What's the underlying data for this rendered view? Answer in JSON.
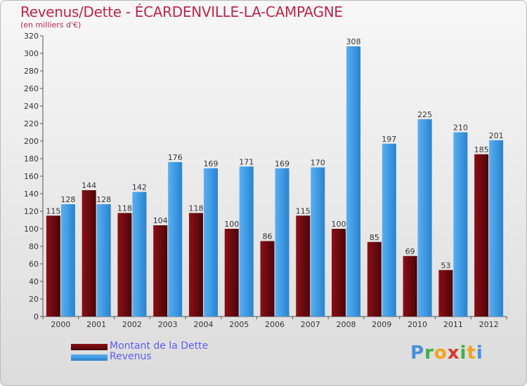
{
  "title": "Revenus/Dette - ÉCARDENVILLE-LA-CAMPAGNE",
  "subtitle": "(en milliers d'€)",
  "colors": {
    "dette": "#6b0a0f",
    "revenus": "#3f9ae3",
    "title": "#b8274b",
    "legend_text": "#5c5cf0"
  },
  "chart_data": {
    "type": "bar",
    "categories": [
      "2000",
      "2001",
      "2002",
      "2003",
      "2004",
      "2005",
      "2006",
      "2007",
      "2008",
      "2009",
      "2010",
      "2011",
      "2012"
    ],
    "series": [
      {
        "name": "Montant de la Dette",
        "values": [
          115,
          144,
          118,
          104,
          118,
          100,
          86,
          115,
          100,
          85,
          69,
          53,
          185
        ]
      },
      {
        "name": "Revenus",
        "values": [
          128,
          128,
          142,
          176,
          169,
          171,
          169,
          170,
          308,
          197,
          225,
          210,
          201
        ]
      }
    ],
    "yticks": [
      0,
      20,
      40,
      60,
      80,
      100,
      120,
      140,
      160,
      180,
      200,
      220,
      240,
      260,
      280,
      300,
      320
    ],
    "ylim": [
      0,
      320
    ],
    "xlabel": "",
    "ylabel": "",
    "grid": false,
    "legend_position": "bottom-left"
  },
  "logo": {
    "text": "Proxiti",
    "parts": [
      "P",
      "r",
      "o",
      "x",
      "i",
      "t",
      "i"
    ]
  }
}
